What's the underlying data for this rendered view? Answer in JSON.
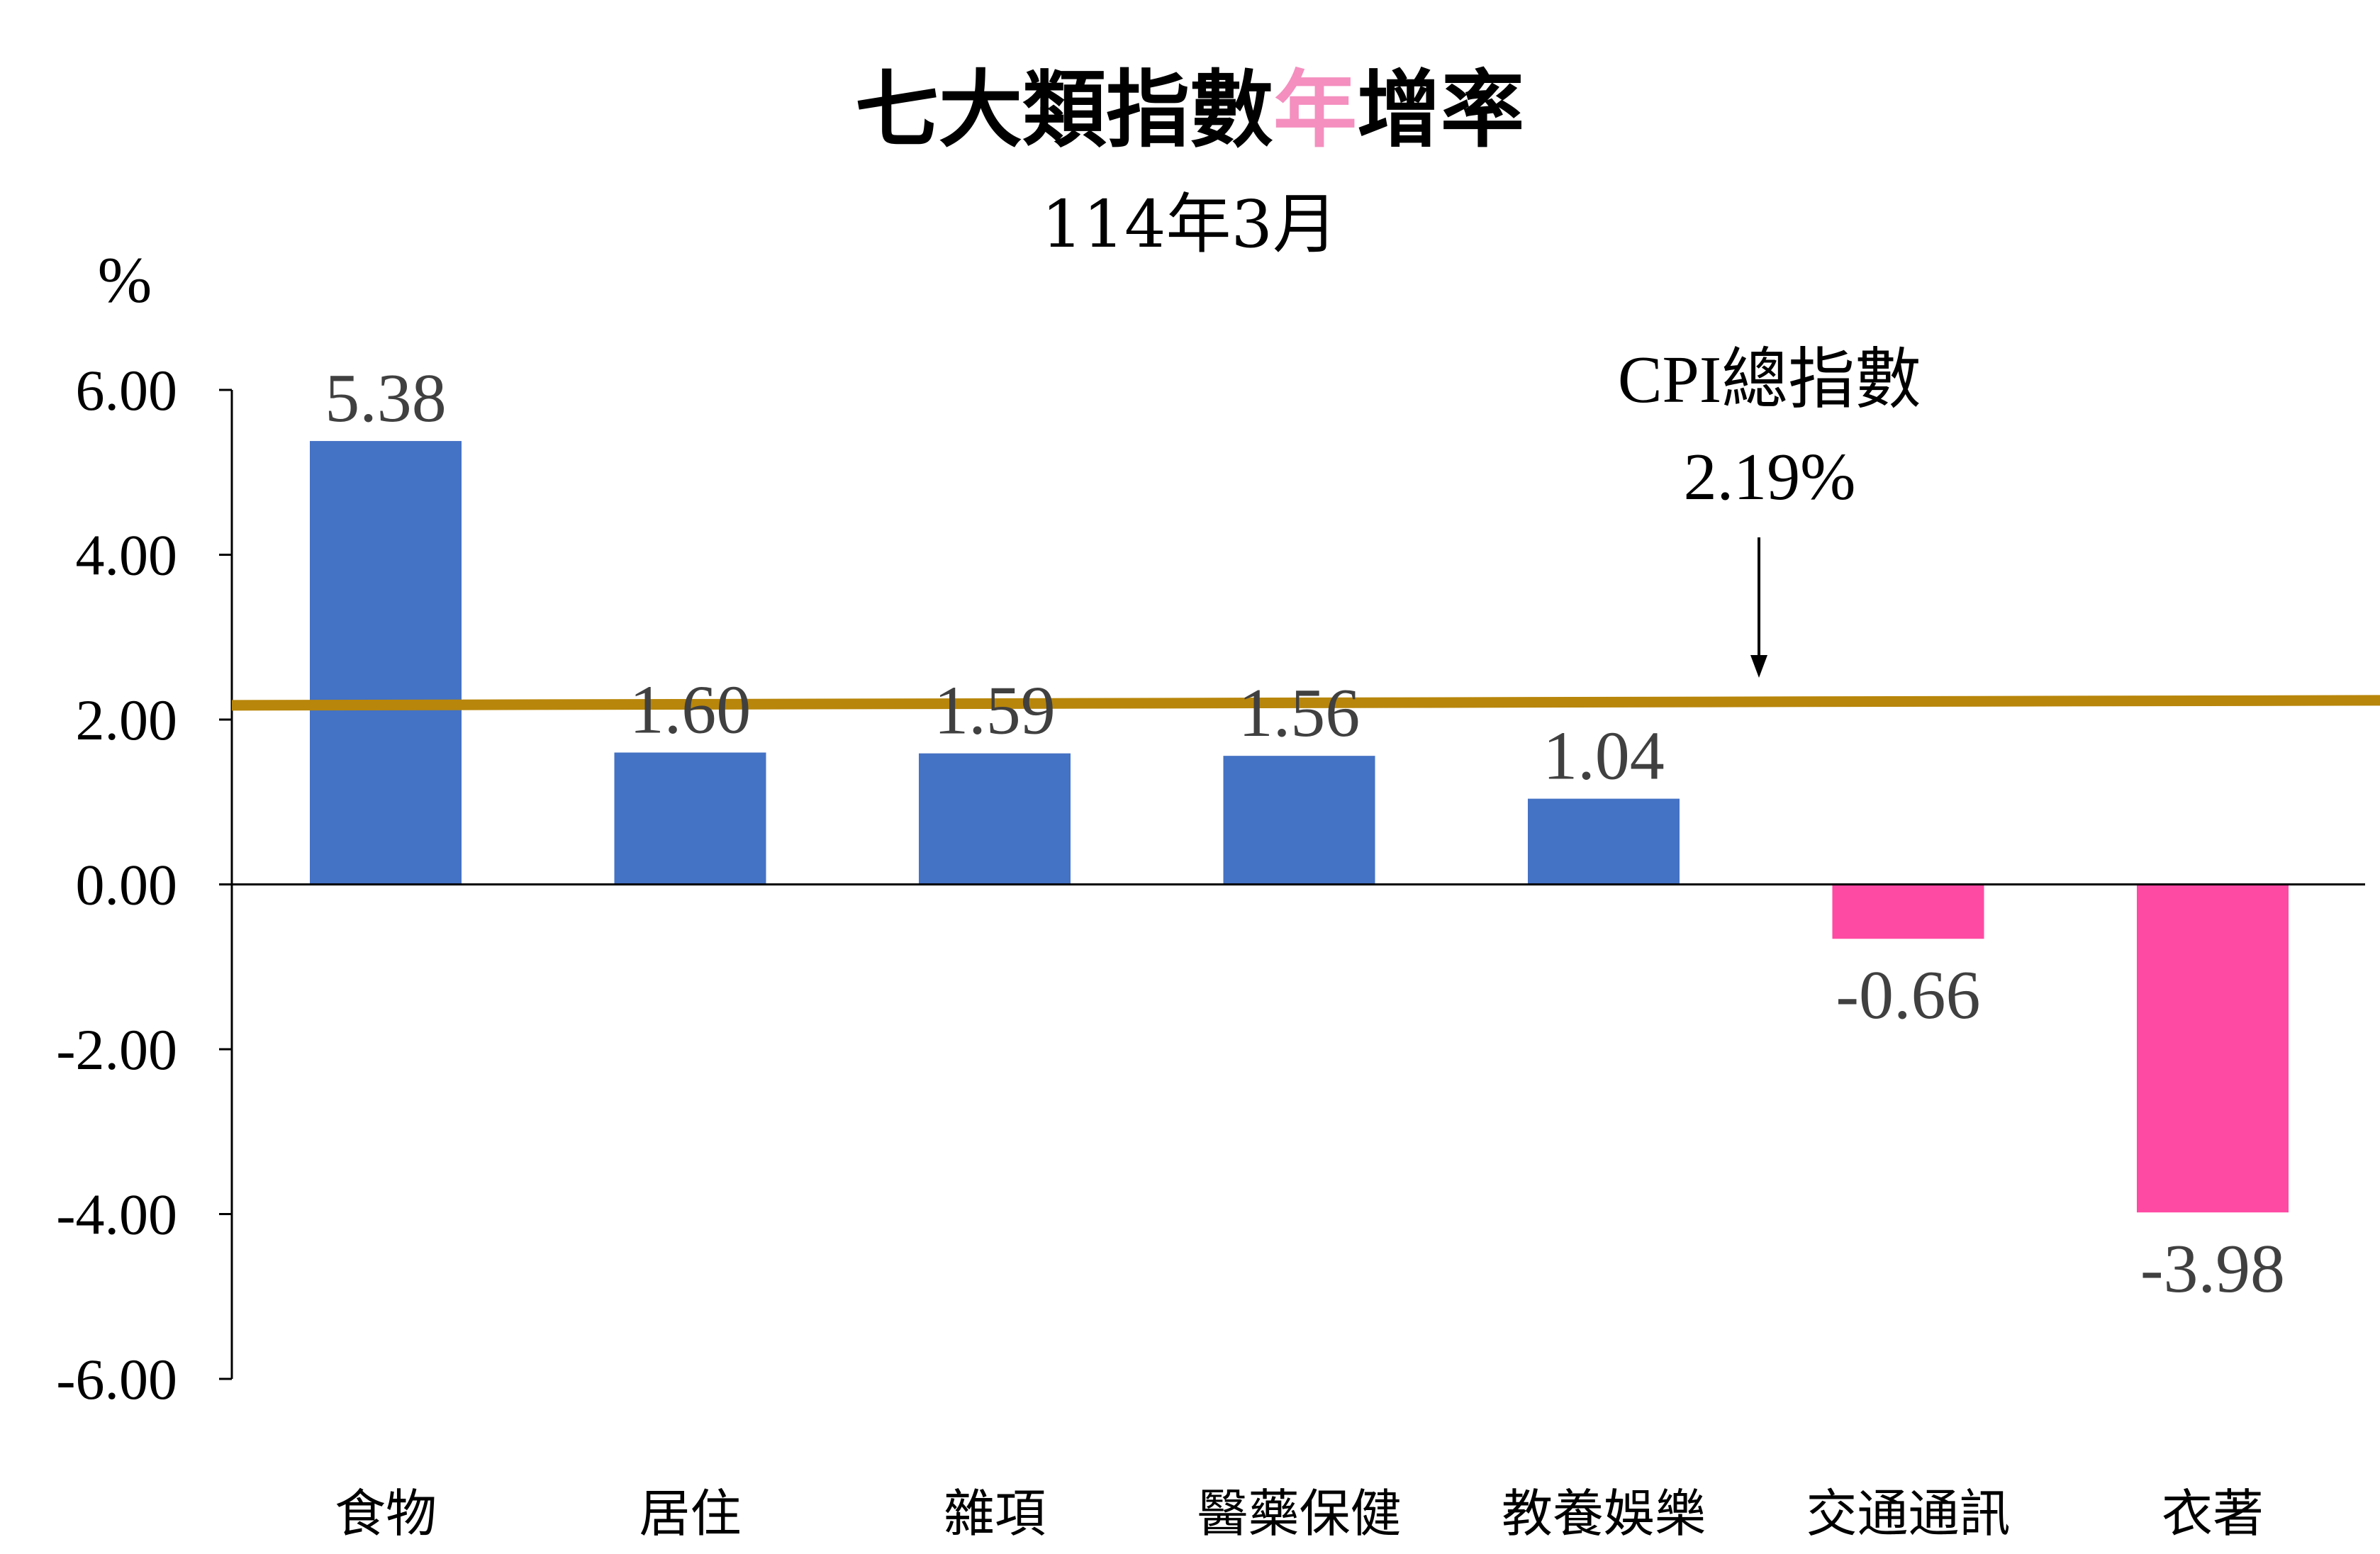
{
  "chart_data": {
    "type": "bar",
    "title": {
      "before": "七大類指數",
      "highlight": "年",
      "after": "增率"
    },
    "subtitle": "114年3月",
    "ylabel": "%",
    "ylim": [
      -6,
      6
    ],
    "y_ticks": [
      6,
      4,
      2,
      0,
      -2,
      -4,
      -6
    ],
    "y_tick_labels": [
      "6.00",
      "4.00",
      "2.00",
      "0.00",
      "-2.00",
      "-4.00",
      "-6.00"
    ],
    "categories": [
      "食物",
      "居住",
      "雜項",
      "醫藥保健",
      "教養娛樂",
      "交通通訊",
      "衣著"
    ],
    "values": [
      5.38,
      1.6,
      1.59,
      1.56,
      1.04,
      -0.66,
      -3.98
    ],
    "value_labels": [
      "5.38",
      "1.60",
      "1.59",
      "1.56",
      "1.04",
      "-0.66",
      "-3.98"
    ],
    "reference_line": {
      "name": "CPI總指數",
      "value": 2.19,
      "label": "2.19%"
    },
    "grid": false
  },
  "colors": {
    "positive_bar": "#4472C4",
    "negative_bar": "#FF4AA3",
    "reference_line": "#B8860B",
    "title_highlight": "#F48FBF",
    "axis": "#000000",
    "text": "#000000",
    "value_label": "#404040"
  }
}
